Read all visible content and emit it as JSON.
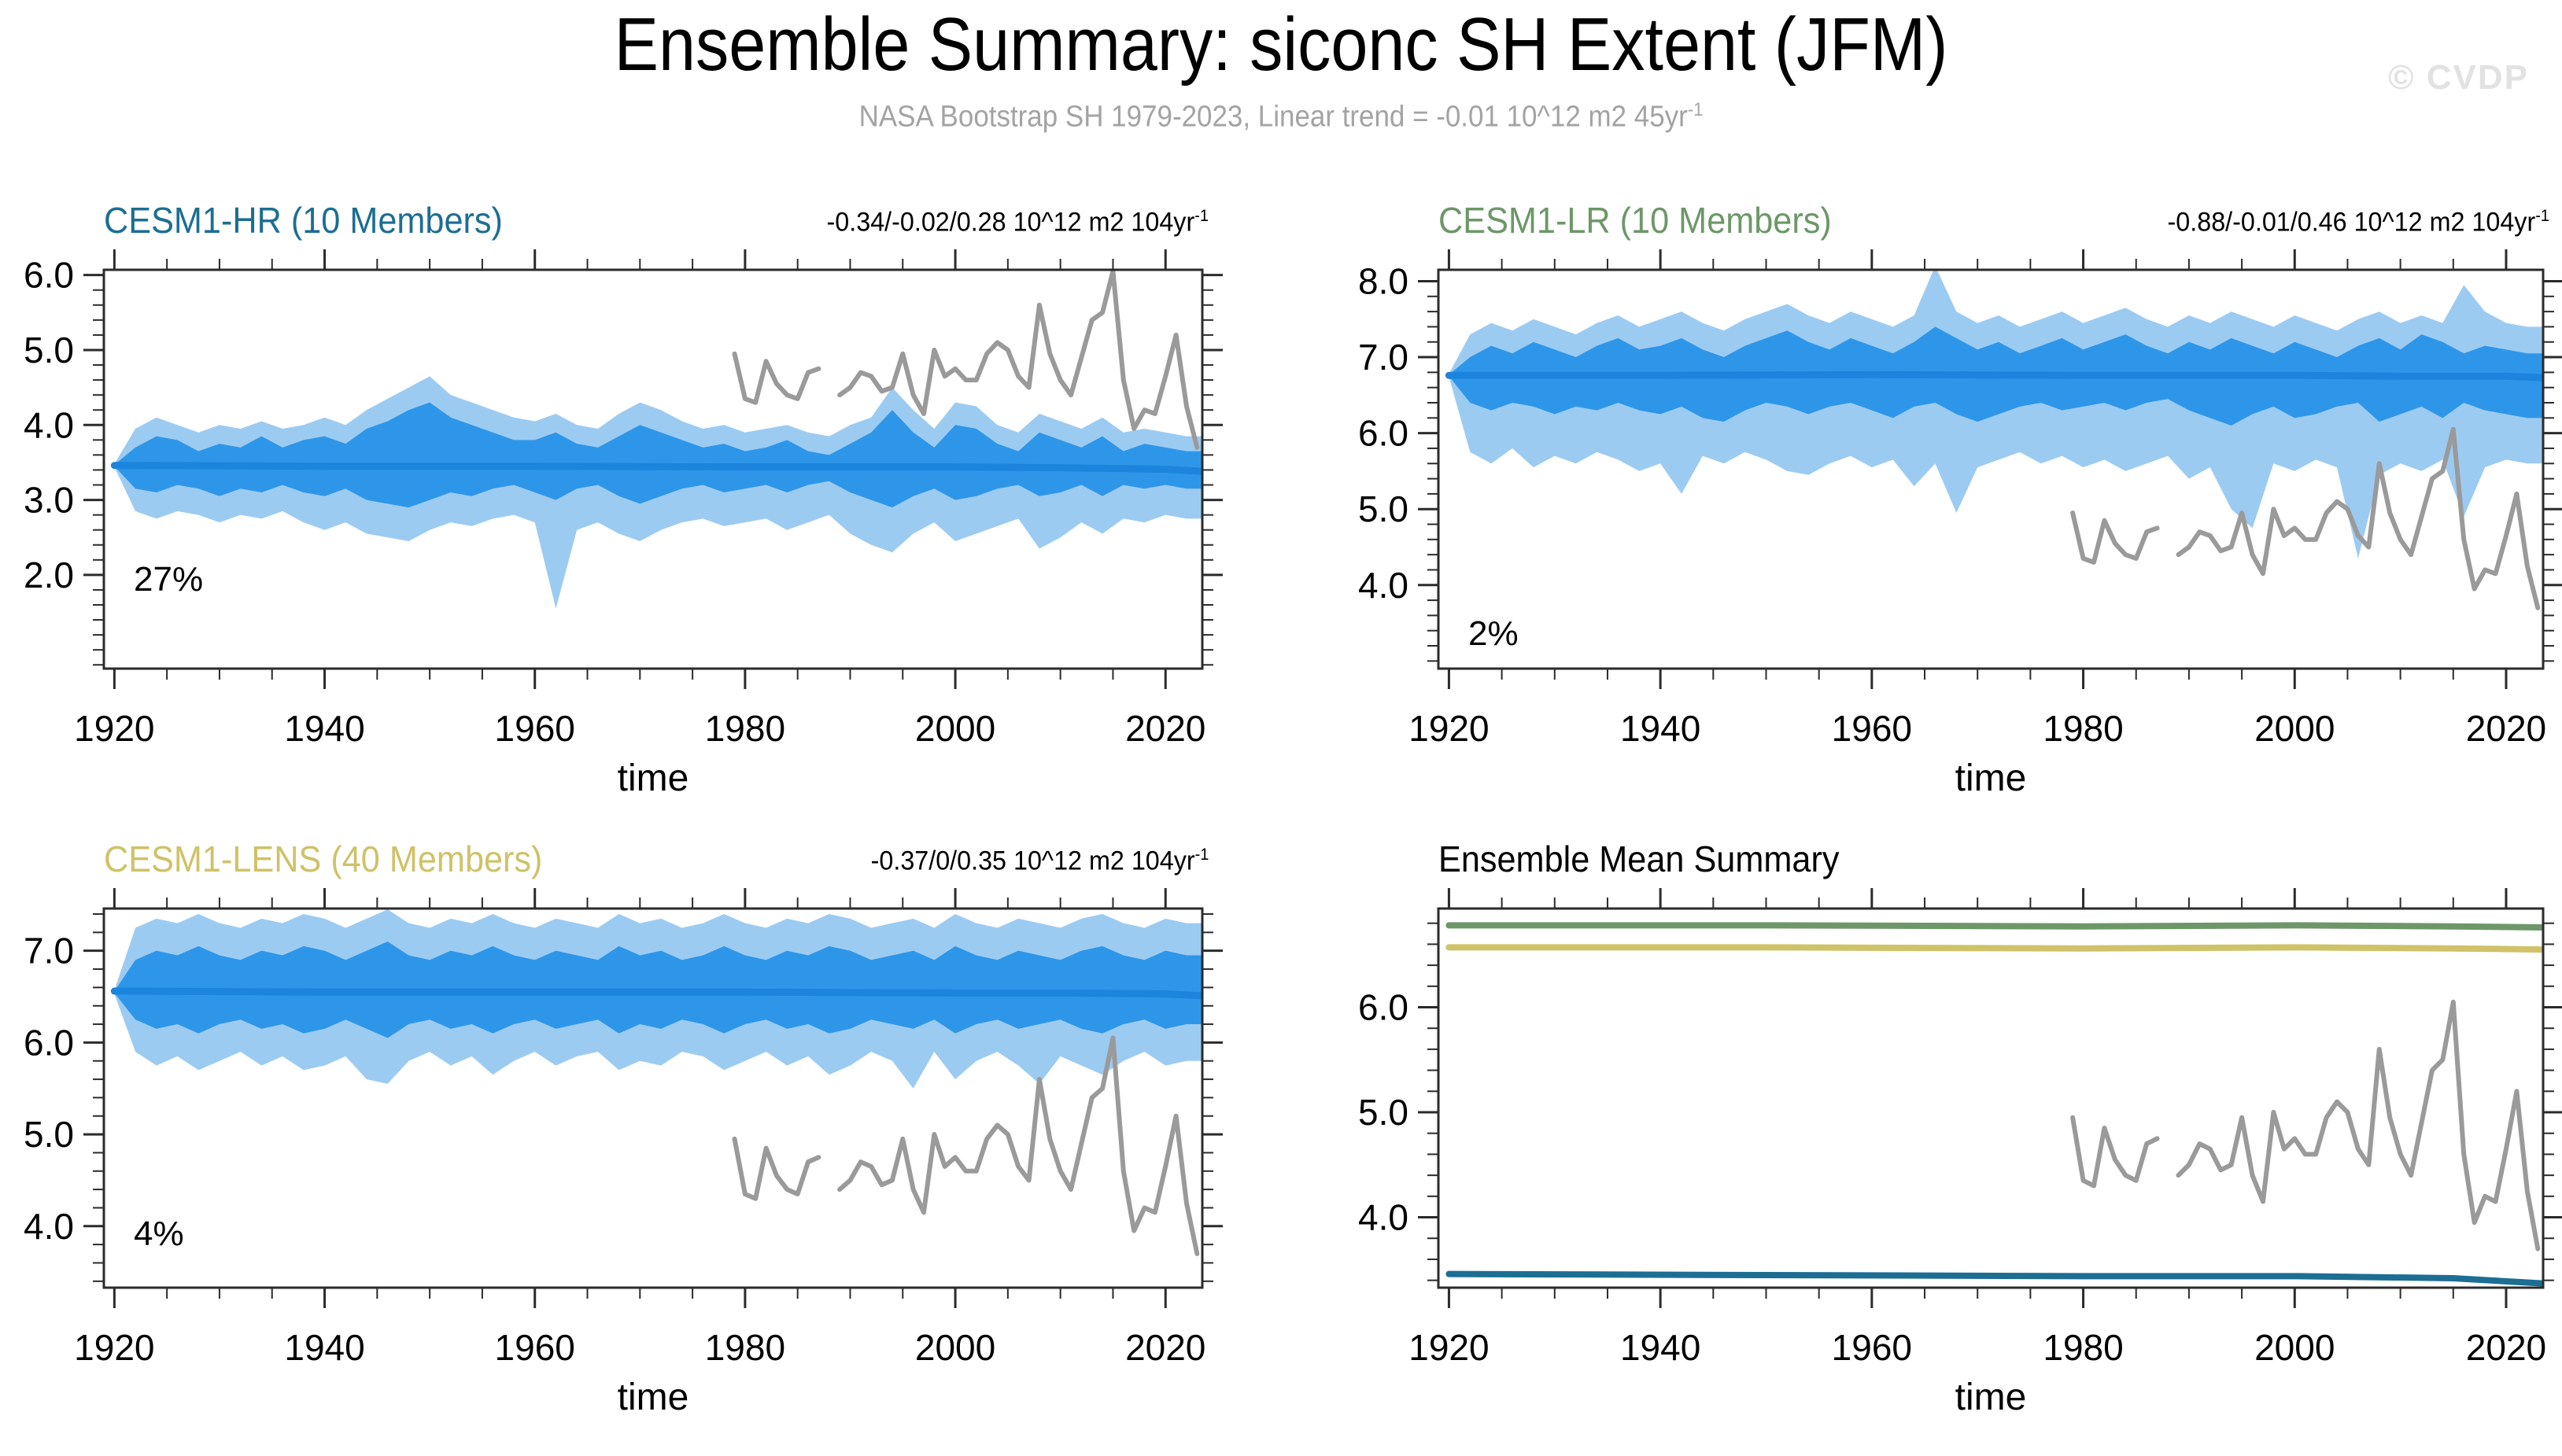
{
  "header": {
    "title": "Ensemble Summary: siconc SH Extent (JFM)",
    "subtitle": "NASA Bootstrap SH 1979-2023, Linear trend = -0.01 10^12 m2 45yr",
    "subtitle_sup": "-1",
    "watermark": "© CVDP"
  },
  "colors": {
    "band_outer": "#9CCBF2",
    "band_inner": "#2E96E8",
    "mean_line": "#1B84DC",
    "obs_line": "#9A9A9A",
    "frame": "#2B2B2B"
  },
  "obs": {
    "label": "NASA Bootstrap SH 1979-2023",
    "x_start": 1979,
    "values": [
      4.95,
      4.35,
      4.3,
      4.85,
      4.55,
      4.4,
      4.35,
      4.7,
      4.75,
      null,
      4.4,
      4.5,
      4.7,
      4.65,
      4.45,
      4.5,
      4.95,
      4.4,
      4.15,
      5.0,
      4.65,
      4.75,
      4.6,
      4.6,
      4.95,
      5.1,
      5.0,
      4.65,
      4.5,
      5.6,
      4.95,
      4.6,
      4.4,
      4.9,
      5.4,
      5.5,
      6.05,
      4.6,
      3.95,
      4.2,
      4.15,
      4.65,
      5.2,
      4.25,
      3.7
    ]
  },
  "chart_data": [
    {
      "type": "area",
      "title": "CESM1-HR (10 Members)",
      "title_color": "#1C6E93",
      "trend_label": "-0.34/-0.02/0.28 10^12 m2 104yr",
      "trend_sup": "-1",
      "corner_label": "27%",
      "xlabel": "time",
      "xlim": [
        1919,
        2023.5
      ],
      "xticks": [
        1920,
        1940,
        1960,
        1980,
        2000,
        2020
      ],
      "xtick_labels": [
        "1920",
        "1940",
        "1960",
        "1980",
        "2000",
        "2020"
      ],
      "x_minor_step": 5,
      "ylim": [
        0.75,
        6.07
      ],
      "yticks": [
        2,
        3,
        4,
        5,
        6
      ],
      "ytick_labels": [
        "2.0",
        "3.0",
        "4.0",
        "5.0",
        "6.0"
      ],
      "y_minor_step": 0.2,
      "show_obs": true,
      "band": {
        "x_start": 1920,
        "x_step": 2,
        "outer_hi": [
          3.48,
          3.95,
          4.1,
          4.0,
          3.9,
          4.0,
          3.95,
          4.05,
          3.95,
          4.0,
          4.1,
          4.0,
          4.2,
          4.35,
          4.5,
          4.65,
          4.4,
          4.3,
          4.2,
          4.1,
          4.05,
          4.15,
          4.0,
          3.95,
          4.15,
          4.3,
          4.2,
          4.05,
          3.95,
          4.0,
          3.9,
          3.95,
          4.0,
          3.9,
          3.85,
          4.0,
          4.1,
          4.5,
          4.2,
          3.95,
          4.3,
          4.25,
          4.0,
          3.9,
          4.15,
          4.05,
          3.95,
          4.1,
          3.9,
          3.95,
          3.9,
          3.85
        ],
        "inner_hi": [
          3.47,
          3.7,
          3.85,
          3.8,
          3.65,
          3.75,
          3.7,
          3.85,
          3.7,
          3.8,
          3.85,
          3.75,
          3.95,
          4.05,
          4.2,
          4.3,
          4.1,
          4.0,
          3.9,
          3.8,
          3.8,
          3.9,
          3.75,
          3.7,
          3.85,
          4.0,
          3.9,
          3.8,
          3.7,
          3.75,
          3.65,
          3.7,
          3.8,
          3.65,
          3.6,
          3.75,
          3.9,
          4.2,
          3.9,
          3.7,
          4.0,
          3.95,
          3.75,
          3.65,
          3.9,
          3.8,
          3.7,
          3.85,
          3.65,
          3.75,
          3.7,
          3.65
        ],
        "inner_lo": [
          3.45,
          3.15,
          3.1,
          3.2,
          3.15,
          3.05,
          3.15,
          3.1,
          3.2,
          3.1,
          3.05,
          3.15,
          3.0,
          2.95,
          2.9,
          3.0,
          3.1,
          3.05,
          3.15,
          3.2,
          3.1,
          3.0,
          3.15,
          3.2,
          3.05,
          2.95,
          3.05,
          3.15,
          3.2,
          3.1,
          3.15,
          3.2,
          3.1,
          3.2,
          3.25,
          3.1,
          3.0,
          2.9,
          3.05,
          3.15,
          3.0,
          3.05,
          3.15,
          3.2,
          3.05,
          3.1,
          3.2,
          3.05,
          3.2,
          3.15,
          3.2,
          3.15
        ],
        "outer_lo": [
          3.44,
          2.85,
          2.75,
          2.85,
          2.8,
          2.7,
          2.8,
          2.75,
          2.85,
          2.7,
          2.6,
          2.7,
          2.55,
          2.5,
          2.45,
          2.6,
          2.7,
          2.65,
          2.75,
          2.8,
          2.7,
          1.55,
          2.6,
          2.7,
          2.55,
          2.45,
          2.6,
          2.7,
          2.75,
          2.65,
          2.7,
          2.75,
          2.6,
          2.7,
          2.8,
          2.55,
          2.4,
          2.3,
          2.55,
          2.7,
          2.45,
          2.55,
          2.65,
          2.75,
          2.35,
          2.5,
          2.7,
          2.55,
          2.75,
          2.7,
          2.8,
          2.75
        ]
      },
      "mean": {
        "x": [
          1920,
          1940,
          1960,
          1980,
          2000,
          2010,
          2020,
          2023.5
        ],
        "y": [
          3.46,
          3.45,
          3.45,
          3.44,
          3.44,
          3.43,
          3.41,
          3.38
        ]
      }
    },
    {
      "type": "area",
      "title": "CESM1-LR (10 Members)",
      "title_color": "#6D9768",
      "trend_label": "-0.88/-0.01/0.46 10^12 m2 104yr",
      "trend_sup": "-1",
      "corner_label": "2%",
      "xlabel": "time",
      "xlim": [
        1919,
        2023.5
      ],
      "xticks": [
        1920,
        1940,
        1960,
        1980,
        2000,
        2020
      ],
      "xtick_labels": [
        "1920",
        "1940",
        "1960",
        "1980",
        "2000",
        "2020"
      ],
      "x_minor_step": 5,
      "ylim": [
        2.9,
        8.15
      ],
      "yticks": [
        4,
        5,
        6,
        7,
        8
      ],
      "ytick_labels": [
        "4.0",
        "5.0",
        "6.0",
        "7.0",
        "8.0"
      ],
      "y_minor_step": 0.2,
      "show_obs": true,
      "band": {
        "x_start": 1920,
        "x_step": 2,
        "outer_hi": [
          6.78,
          7.3,
          7.45,
          7.35,
          7.5,
          7.4,
          7.3,
          7.45,
          7.55,
          7.4,
          7.5,
          7.6,
          7.45,
          7.35,
          7.5,
          7.6,
          7.7,
          7.55,
          7.45,
          7.6,
          7.5,
          7.4,
          7.55,
          8.2,
          7.6,
          7.45,
          7.55,
          7.4,
          7.5,
          7.6,
          7.45,
          7.55,
          7.65,
          7.5,
          7.4,
          7.55,
          7.45,
          7.6,
          7.5,
          7.4,
          7.55,
          7.45,
          7.35,
          7.5,
          7.6,
          7.45,
          7.55,
          7.45,
          7.95,
          7.6,
          7.45,
          7.4
        ],
        "inner_hi": [
          6.77,
          7.0,
          7.15,
          7.05,
          7.2,
          7.1,
          7.0,
          7.15,
          7.25,
          7.1,
          7.15,
          7.25,
          7.1,
          7.0,
          7.15,
          7.25,
          7.35,
          7.2,
          7.1,
          7.25,
          7.15,
          7.05,
          7.2,
          7.4,
          7.25,
          7.1,
          7.2,
          7.05,
          7.15,
          7.25,
          7.1,
          7.2,
          7.3,
          7.15,
          7.05,
          7.2,
          7.1,
          7.25,
          7.15,
          7.05,
          7.2,
          7.1,
          7.0,
          7.15,
          7.25,
          7.1,
          7.3,
          7.2,
          7.05,
          7.15,
          7.1,
          7.05
        ],
        "inner_lo": [
          6.75,
          6.4,
          6.3,
          6.4,
          6.35,
          6.25,
          6.35,
          6.3,
          6.4,
          6.3,
          6.25,
          6.35,
          6.2,
          6.15,
          6.3,
          6.4,
          6.35,
          6.25,
          6.35,
          6.4,
          6.3,
          6.2,
          6.35,
          6.4,
          6.25,
          6.15,
          6.25,
          6.35,
          6.4,
          6.3,
          6.35,
          6.4,
          6.3,
          6.4,
          6.45,
          6.3,
          6.2,
          6.1,
          6.25,
          6.35,
          6.2,
          6.25,
          6.35,
          6.4,
          6.15,
          6.25,
          6.35,
          6.2,
          6.4,
          6.3,
          6.25,
          6.2
        ],
        "outer_lo": [
          6.74,
          5.75,
          5.6,
          5.8,
          5.55,
          5.7,
          5.6,
          5.75,
          5.65,
          5.5,
          5.6,
          5.2,
          5.7,
          5.6,
          5.75,
          5.65,
          5.5,
          5.45,
          5.6,
          5.7,
          5.55,
          5.65,
          5.3,
          5.6,
          4.95,
          5.55,
          5.65,
          5.75,
          5.6,
          5.7,
          5.55,
          5.65,
          5.5,
          5.6,
          5.7,
          5.4,
          5.55,
          5.0,
          4.75,
          5.6,
          5.5,
          5.65,
          5.55,
          4.35,
          5.45,
          5.6,
          5.5,
          5.65,
          4.9,
          5.55,
          5.65,
          5.6
        ]
      },
      "mean": {
        "x": [
          1920,
          1940,
          1960,
          1980,
          2000,
          2010,
          2020,
          2023.5
        ],
        "y": [
          6.76,
          6.76,
          6.77,
          6.76,
          6.76,
          6.75,
          6.75,
          6.73
        ]
      }
    },
    {
      "type": "area",
      "title": "CESM1-LENS (40 Members)",
      "title_color": "#CFC268",
      "trend_label": "-0.37/0/0.35 10^12 m2 104yr",
      "trend_sup": "-1",
      "corner_label": "4%",
      "xlabel": "time",
      "xlim": [
        1919,
        2023.5
      ],
      "xticks": [
        1920,
        1940,
        1960,
        1980,
        2000,
        2020
      ],
      "xtick_labels": [
        "1920",
        "1940",
        "1960",
        "1980",
        "2000",
        "2020"
      ],
      "x_minor_step": 5,
      "ylim": [
        3.33,
        7.46
      ],
      "yticks": [
        4,
        5,
        6,
        7
      ],
      "ytick_labels": [
        "4.0",
        "5.0",
        "6.0",
        "7.0"
      ],
      "y_minor_step": 0.2,
      "show_obs": true,
      "band": {
        "x_start": 1920,
        "x_step": 2,
        "outer_hi": [
          6.57,
          7.25,
          7.35,
          7.3,
          7.4,
          7.3,
          7.25,
          7.35,
          7.3,
          7.4,
          7.35,
          7.25,
          7.35,
          7.45,
          7.3,
          7.25,
          7.35,
          7.3,
          7.4,
          7.3,
          7.25,
          7.35,
          7.3,
          7.25,
          7.4,
          7.3,
          7.35,
          7.25,
          7.3,
          7.4,
          7.3,
          7.25,
          7.35,
          7.3,
          7.4,
          7.35,
          7.25,
          7.3,
          7.35,
          7.25,
          7.4,
          7.3,
          7.25,
          7.35,
          7.3,
          7.25,
          7.35,
          7.4,
          7.3,
          7.25,
          7.35,
          7.3
        ],
        "inner_hi": [
          6.56,
          6.9,
          7.0,
          6.95,
          7.05,
          6.95,
          6.9,
          7.0,
          6.95,
          7.05,
          7.0,
          6.9,
          7.0,
          7.1,
          6.95,
          6.9,
          7.0,
          6.95,
          7.05,
          6.95,
          6.9,
          7.0,
          6.95,
          6.9,
          7.05,
          6.95,
          7.0,
          6.9,
          6.95,
          7.05,
          6.95,
          6.9,
          7.0,
          6.95,
          7.05,
          7.0,
          6.9,
          6.95,
          7.0,
          6.9,
          7.05,
          6.95,
          6.9,
          7.0,
          6.95,
          6.9,
          7.0,
          7.05,
          6.95,
          6.9,
          7.0,
          6.95
        ],
        "inner_lo": [
          6.54,
          6.25,
          6.15,
          6.2,
          6.1,
          6.2,
          6.25,
          6.15,
          6.2,
          6.1,
          6.15,
          6.25,
          6.15,
          6.05,
          6.2,
          6.25,
          6.15,
          6.2,
          6.1,
          6.2,
          6.25,
          6.15,
          6.2,
          6.25,
          6.1,
          6.2,
          6.15,
          6.25,
          6.2,
          6.1,
          6.2,
          6.25,
          6.15,
          6.2,
          6.1,
          6.15,
          6.25,
          6.2,
          6.15,
          6.25,
          6.1,
          6.2,
          6.25,
          6.15,
          6.2,
          6.25,
          6.15,
          6.1,
          6.2,
          6.25,
          6.15,
          6.2
        ],
        "outer_lo": [
          6.53,
          5.9,
          5.75,
          5.85,
          5.7,
          5.8,
          5.9,
          5.75,
          5.85,
          5.7,
          5.75,
          5.85,
          5.6,
          5.55,
          5.8,
          5.9,
          5.75,
          5.85,
          5.65,
          5.8,
          5.9,
          5.75,
          5.85,
          5.9,
          5.7,
          5.8,
          5.75,
          5.9,
          5.85,
          5.7,
          5.8,
          5.9,
          5.75,
          5.85,
          5.65,
          5.75,
          5.9,
          5.8,
          5.5,
          5.9,
          5.6,
          5.8,
          5.9,
          5.75,
          5.55,
          5.85,
          5.75,
          5.65,
          5.8,
          5.9,
          5.75,
          5.8
        ]
      },
      "mean": {
        "x": [
          1920,
          1940,
          1960,
          1980,
          2000,
          2010,
          2020,
          2023.5
        ],
        "y": [
          6.56,
          6.55,
          6.55,
          6.55,
          6.54,
          6.54,
          6.53,
          6.51
        ]
      }
    },
    {
      "type": "line",
      "title": "Ensemble Mean Summary",
      "title_color": "#000000",
      "xlabel": "time",
      "xlim": [
        1919,
        2023.5
      ],
      "xticks": [
        1920,
        1940,
        1960,
        1980,
        2000,
        2020
      ],
      "xtick_labels": [
        "1920",
        "1940",
        "1960",
        "1980",
        "2000",
        "2020"
      ],
      "x_minor_step": 5,
      "ylim": [
        3.33,
        6.94
      ],
      "yticks": [
        4,
        5,
        6
      ],
      "ytick_labels": [
        "4.0",
        "5.0",
        "6.0"
      ],
      "y_minor_step": 0.2,
      "show_obs": true,
      "series": [
        {
          "name": "CESM1-LR",
          "color": "#6D9768",
          "x": [
            1920,
            1950,
            1980,
            2000,
            2015,
            2023.5
          ],
          "y": [
            6.78,
            6.78,
            6.77,
            6.78,
            6.77,
            6.76
          ]
        },
        {
          "name": "CESM1-LENS",
          "color": "#CFC268",
          "x": [
            1920,
            1950,
            1980,
            2000,
            2015,
            2023.5
          ],
          "y": [
            6.57,
            6.57,
            6.56,
            6.57,
            6.56,
            6.55
          ]
        },
        {
          "name": "CESM1-HR",
          "color": "#1C6E93",
          "x": [
            1920,
            1950,
            1980,
            2000,
            2015,
            2023.5
          ],
          "y": [
            3.46,
            3.45,
            3.44,
            3.44,
            3.42,
            3.37
          ]
        }
      ]
    }
  ]
}
